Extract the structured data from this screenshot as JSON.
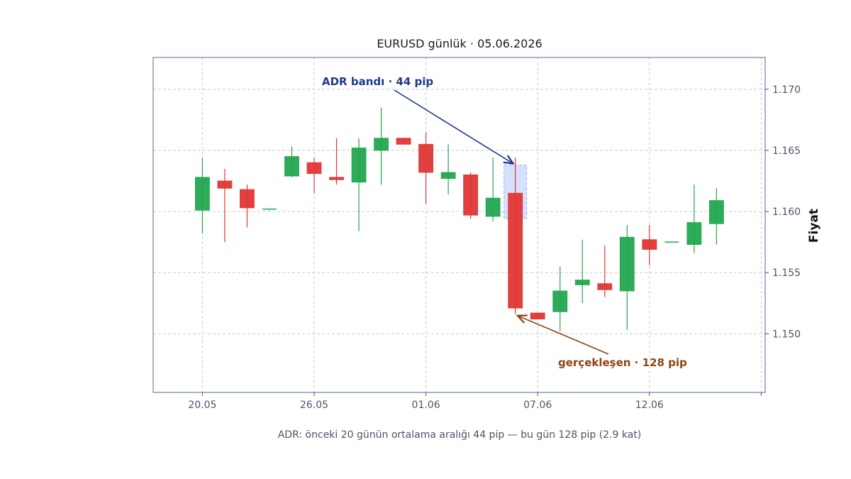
{
  "chart_data": {
    "type": "candlestick",
    "title": "EURUSD günlük · 05.06.2026",
    "ylabel": "Fiyat",
    "xlabel": "",
    "caption": "ADR: önceki 20 günün ortalama aralığı 44 pip — bu gün 128 pip (2.9 kat)",
    "ylim": [
      1.1452,
      1.1726
    ],
    "yticks": [
      "1.150",
      "1.155",
      "1.160",
      "1.165",
      "1.170"
    ],
    "xticks": [
      "20.05",
      "26.05",
      "01.06",
      "07.06",
      "12.06"
    ],
    "grid": true,
    "colors": {
      "up": "#22a74f",
      "down": "#e03535",
      "band": "#c9d6fb",
      "frame": "#8a9bb8"
    },
    "series": [
      {
        "candles": [
          {
            "o": 1.1601,
            "h": 1.1644,
            "l": 1.1582,
            "c": 1.1628
          },
          {
            "o": 1.1625,
            "h": 1.1635,
            "l": 1.1575,
            "c": 1.1619
          },
          {
            "o": 1.1618,
            "h": 1.1622,
            "l": 1.1587,
            "c": 1.1603
          },
          {
            "o": 1.1602,
            "h": 1.1602,
            "l": 1.1601,
            "c": 1.1602
          },
          {
            "o": 1.1629,
            "h": 1.1653,
            "l": 1.1628,
            "c": 1.1645
          },
          {
            "o": 1.164,
            "h": 1.1644,
            "l": 1.1615,
            "c": 1.1631
          },
          {
            "o": 1.1628,
            "h": 1.166,
            "l": 1.1622,
            "c": 1.1626
          },
          {
            "o": 1.1624,
            "h": 1.166,
            "l": 1.1584,
            "c": 1.1652
          },
          {
            "o": 1.165,
            "h": 1.1685,
            "l": 1.1622,
            "c": 1.166
          },
          {
            "o": 1.166,
            "h": 1.166,
            "l": 1.1655,
            "c": 1.1655
          },
          {
            "o": 1.1655,
            "h": 1.1665,
            "l": 1.1606,
            "c": 1.1632
          },
          {
            "o": 1.1627,
            "h": 1.1655,
            "l": 1.1614,
            "c": 1.1632
          },
          {
            "o": 1.163,
            "h": 1.1632,
            "l": 1.1594,
            "c": 1.1597
          },
          {
            "o": 1.1596,
            "h": 1.1644,
            "l": 1.1592,
            "c": 1.1611
          },
          {
            "o": 1.1615,
            "h": 1.1644,
            "l": 1.1516,
            "c": 1.1521
          },
          {
            "o": 1.1517,
            "h": 1.1517,
            "l": 1.1512,
            "c": 1.1512
          },
          {
            "o": 1.1518,
            "h": 1.1555,
            "l": 1.1502,
            "c": 1.1535
          },
          {
            "o": 1.154,
            "h": 1.1577,
            "l": 1.1525,
            "c": 1.1544
          },
          {
            "o": 1.1541,
            "h": 1.1572,
            "l": 1.153,
            "c": 1.1536
          },
          {
            "o": 1.1535,
            "h": 1.1589,
            "l": 1.1503,
            "c": 1.1579
          },
          {
            "o": 1.1577,
            "h": 1.1589,
            "l": 1.1556,
            "c": 1.1569
          },
          {
            "o": 1.1575,
            "h": 1.1575,
            "l": 1.1575,
            "c": 1.1575
          },
          {
            "o": 1.1573,
            "h": 1.1622,
            "l": 1.1566,
            "c": 1.1591
          },
          {
            "o": 1.159,
            "h": 1.1619,
            "l": 1.1573,
            "c": 1.1609
          }
        ],
        "tick_positions": [
          0,
          5,
          10,
          15,
          20
        ]
      }
    ],
    "adr_band": {
      "index": 14,
      "low": 1.1594,
      "high": 1.1638
    },
    "annotations": [
      {
        "text": "ADR bandı · 44 pip",
        "color": "#1f3a8a",
        "target_index": 14,
        "target_value": 1.1638
      },
      {
        "text": "gerçekleşen · 128 pip",
        "color": "#8b4513",
        "target_index": 14,
        "target_value": 1.1516
      }
    ]
  }
}
